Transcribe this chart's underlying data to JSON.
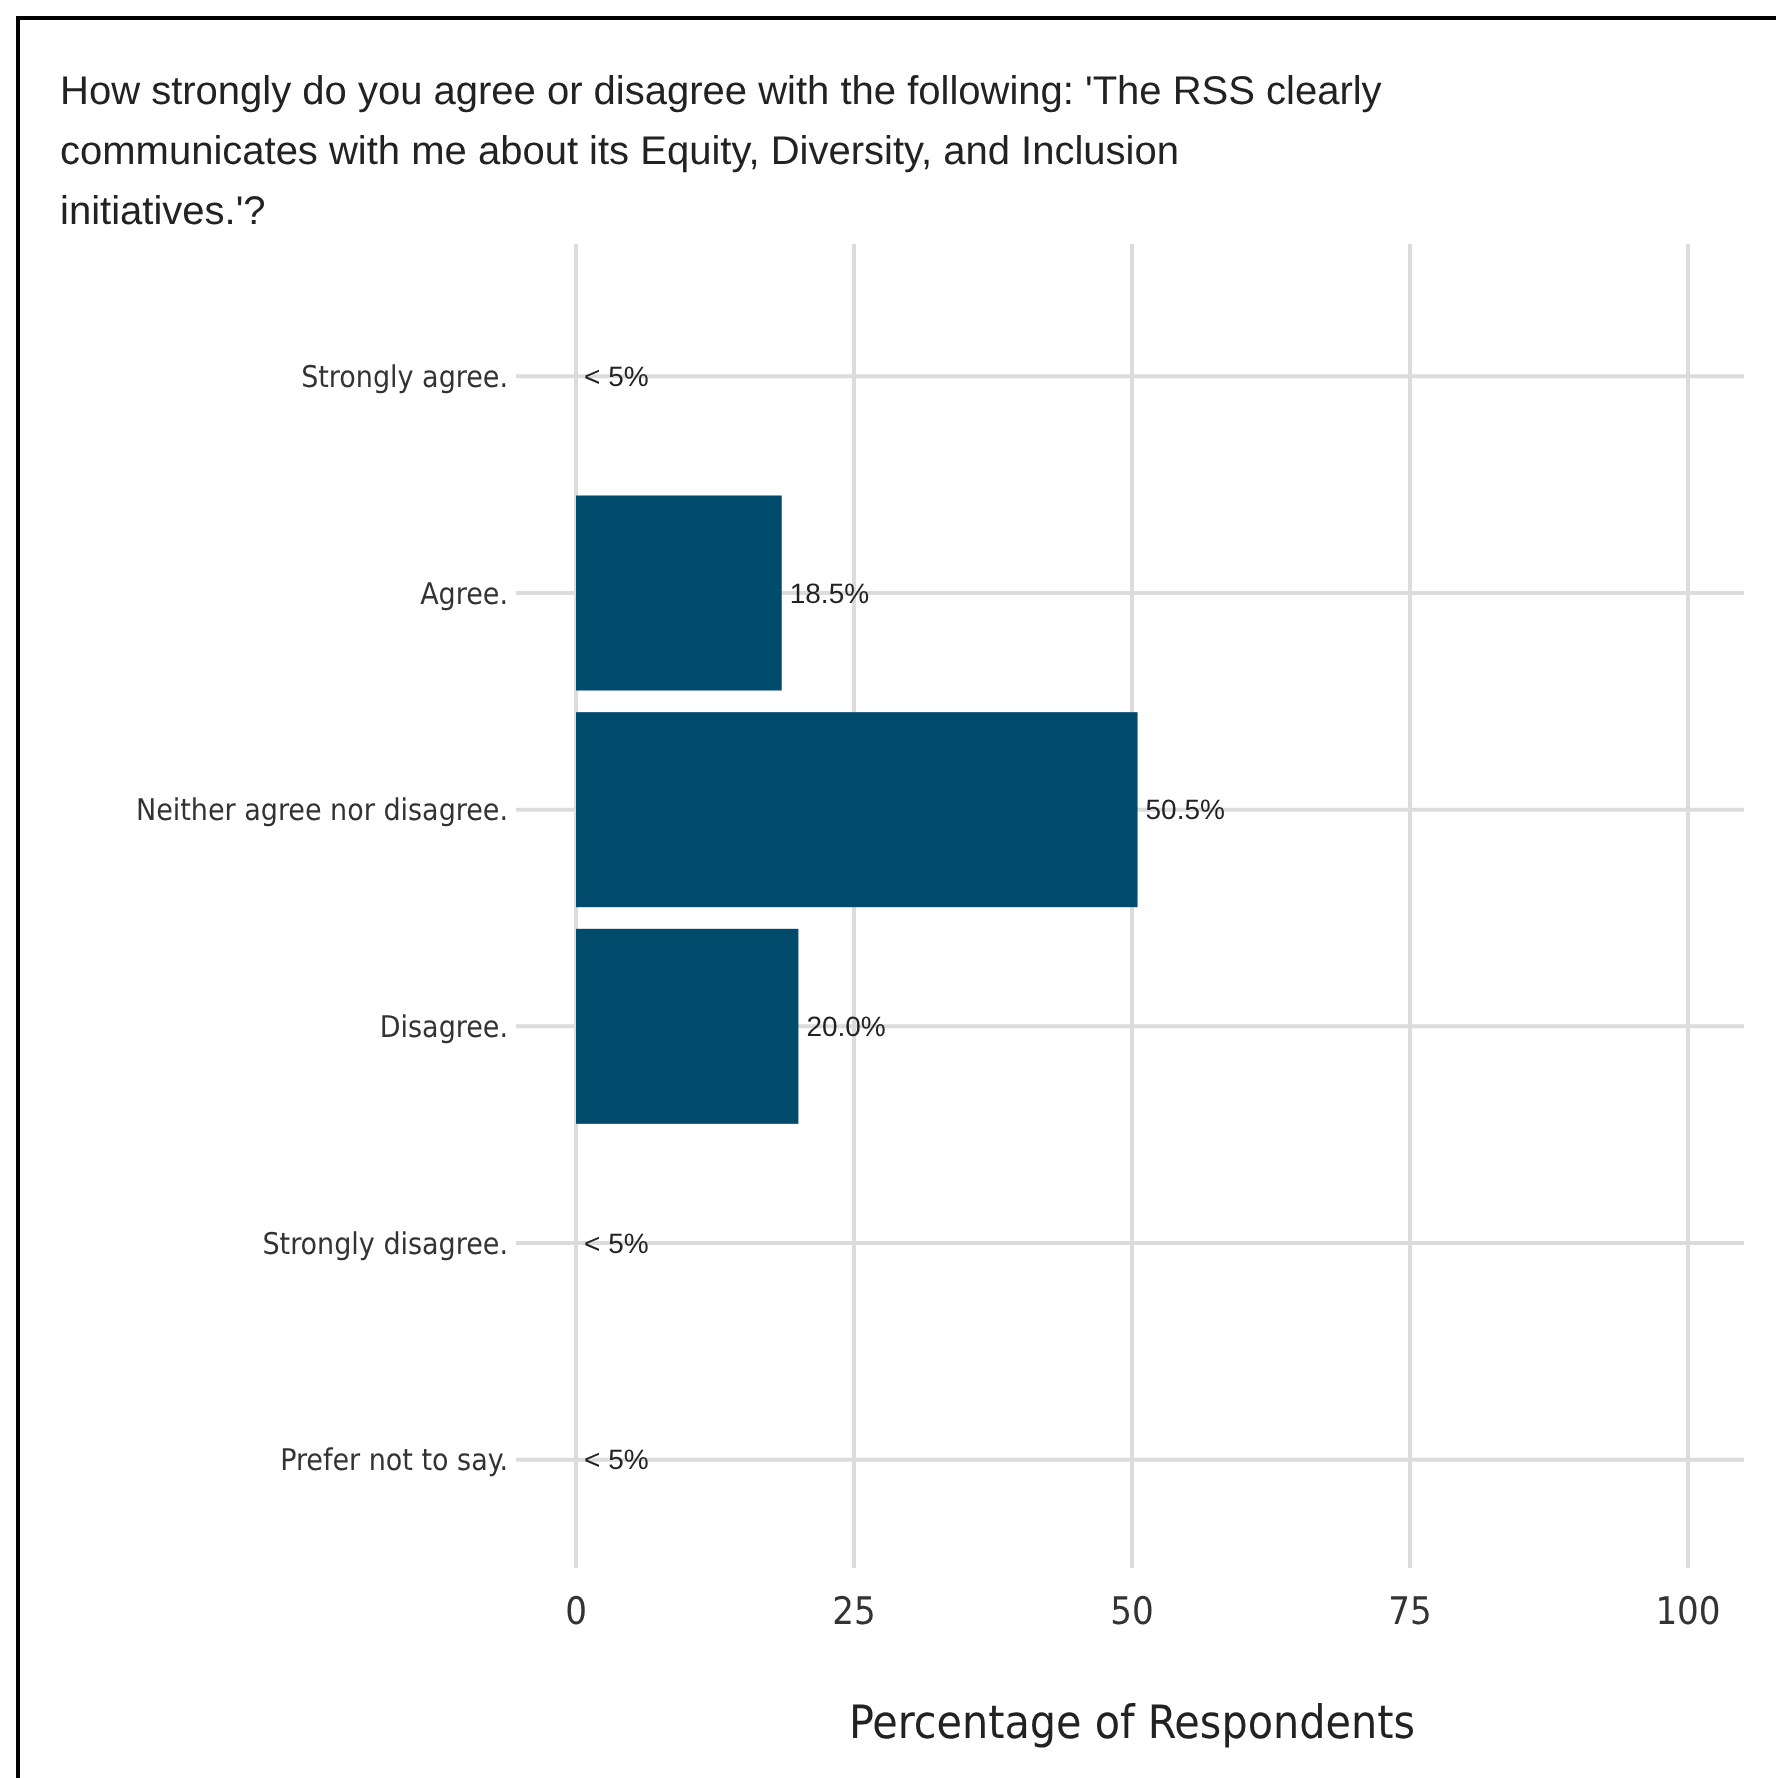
{
  "chart_data": {
    "type": "bar",
    "orientation": "horizontal",
    "title": "How strongly do you agree or disagree with the following: 'The RSS clearly communicates with me about its Equity, Diversity, and Inclusion initiatives.'?",
    "xlabel": "Percentage of Respondents",
    "categories": [
      "Strongly agree.",
      "Agree.",
      "Neither agree nor disagree.",
      "Disagree.",
      "Strongly disagree.",
      "Prefer not to say."
    ],
    "values": [
      null,
      18.5,
      50.5,
      20.0,
      null,
      null
    ],
    "value_labels": [
      "< 5%",
      "18.5%",
      "50.5%",
      "20.0%",
      "< 5%",
      "< 5%"
    ],
    "color": "#004a6b",
    "xlim": [
      0,
      100
    ],
    "xticks": [
      0,
      25,
      50,
      75,
      100
    ],
    "grid": true
  }
}
